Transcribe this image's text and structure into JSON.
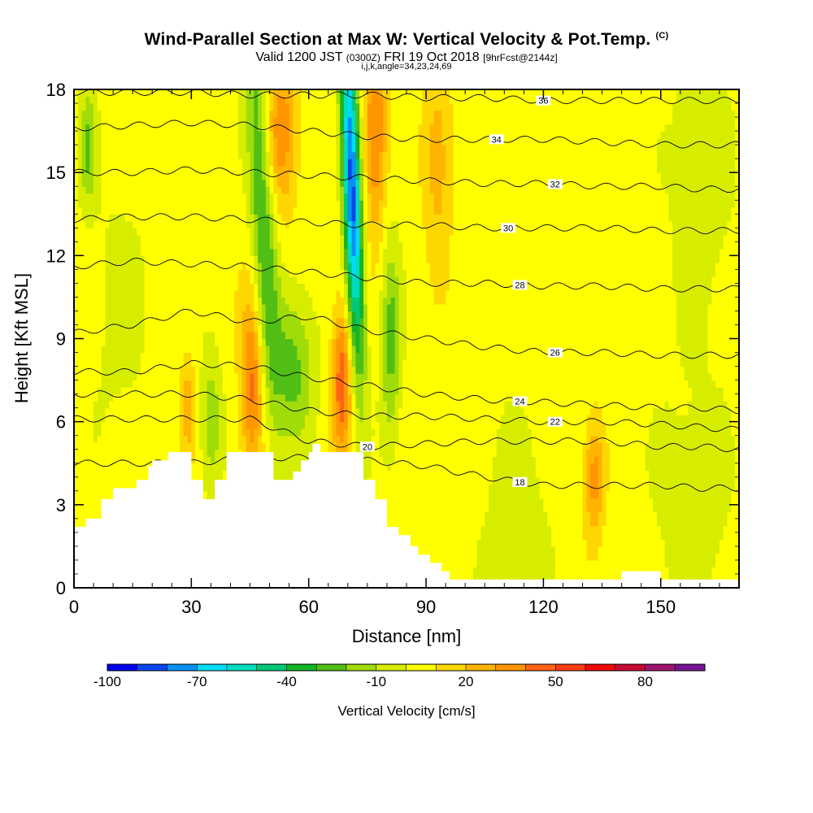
{
  "titles": {
    "main": "Wind-Parallel Section at Max W: Vertical Velocity & Pot.Temp.",
    "main_tag": "(C)",
    "valid_prefix": "Valid 1200 JST",
    "valid_utc": "(0300Z)",
    "valid_date": "FRI 19 Oct 2018",
    "valid_fcst": "[9hrFcst@2144z]",
    "indices": "i,j,k,angle=34,23,24,69"
  },
  "chart_data": {
    "type": "heatmap",
    "xlabel": "Distance [nm]",
    "ylabel": "Height [Kft MSL]",
    "xlim": [
      0,
      170
    ],
    "ylim": [
      0,
      18
    ],
    "x_ticks": [
      0,
      30,
      60,
      90,
      120,
      150
    ],
    "y_ticks": [
      0,
      3,
      6,
      9,
      12,
      15,
      18
    ],
    "colorbar": {
      "label": "Vertical Velocity [cm/s]",
      "range": [
        -100,
        100
      ],
      "tick_values": [
        -100,
        -70,
        -40,
        -10,
        20,
        50,
        80
      ],
      "colors": [
        "#0000f0",
        "#0a46f0",
        "#0a90f5",
        "#00dcf5",
        "#00dcbe",
        "#00c878",
        "#14b428",
        "#50be14",
        "#a0dc0a",
        "#d7ed00",
        "#ffff00",
        "#ffd700",
        "#ffb400",
        "#ff9600",
        "#ff6414",
        "#fa3c14",
        "#f00a0a",
        "#c80a32",
        "#a0146e",
        "#781496"
      ]
    },
    "w_field": {
      "units": "cm/s",
      "background": 5,
      "features": [
        {
          "x": 48,
          "y": 14.0,
          "sx": 2.2,
          "sy": 5.0,
          "w": -38,
          "tilt": -0.35
        },
        {
          "x": 45.5,
          "y": 7.5,
          "sx": 2.0,
          "sy": 2.5,
          "w": 38
        },
        {
          "x": 53,
          "y": 16.5,
          "sx": 3.0,
          "sy": 2.0,
          "w": 32
        },
        {
          "x": 56,
          "y": 8.0,
          "sx": 4.0,
          "sy": 2.0,
          "w": -28
        },
        {
          "x": 71,
          "y": 14.5,
          "sx": 1.6,
          "sy": 4.5,
          "w": -90,
          "tilt": -0.25
        },
        {
          "x": 68.5,
          "y": 7.5,
          "sx": 1.8,
          "sy": 2.0,
          "w": 42
        },
        {
          "x": 77,
          "y": 16.5,
          "sx": 2.0,
          "sy": 2.5,
          "w": 38
        },
        {
          "x": 81,
          "y": 9.0,
          "sx": 1.8,
          "sy": 2.5,
          "w": -30
        },
        {
          "x": 93,
          "y": 15.5,
          "sx": 2.5,
          "sy": 2.5,
          "w": 22
        },
        {
          "x": 3.5,
          "y": 16.0,
          "sx": 1.5,
          "sy": 1.5,
          "w": -25
        },
        {
          "x": 35,
          "y": 6.0,
          "sx": 2.0,
          "sy": 1.8,
          "w": -22
        },
        {
          "x": 29,
          "y": 6.5,
          "sx": 1.5,
          "sy": 1.2,
          "w": 22
        },
        {
          "x": 133,
          "y": 4.0,
          "sx": 1.8,
          "sy": 1.5,
          "w": 30
        },
        {
          "x": 113,
          "y": 2.0,
          "sx": 6.0,
          "sy": 3.0,
          "w": -12
        },
        {
          "x": 158,
          "y": 3.0,
          "sx": 7.0,
          "sy": 3.0,
          "w": -12
        },
        {
          "x": 12,
          "y": 10.0,
          "sx": 6.0,
          "sy": 4.0,
          "w": -8
        },
        {
          "x": 160,
          "y": 15.0,
          "sx": 6.0,
          "sy": 4.0,
          "w": -12
        }
      ]
    },
    "theta_contours": [
      {
        "level": 18,
        "y": [
          4.5,
          4.5,
          4.5,
          4.7,
          4.7,
          4.6,
          4.4,
          4.0,
          3.7,
          3.7,
          3.7,
          3.6,
          3.6
        ],
        "label_at": 114
      },
      {
        "level": 20,
        "y": [
          6.1,
          6.1,
          6.1,
          6.1,
          5.3,
          5.1,
          5.2,
          5.3,
          5.3,
          5.3,
          5.1,
          5.1,
          5.0
        ],
        "label_at": 75
      },
      {
        "level": 22,
        "y": [
          7.0,
          7.0,
          7.0,
          6.8,
          6.4,
          6.2,
          6.2,
          6.1,
          6.0,
          6.0,
          5.9,
          5.8,
          5.7
        ],
        "label_at": 123
      },
      {
        "level": 24,
        "y": [
          7.8,
          7.8,
          8.1,
          8.0,
          7.6,
          7.3,
          7.0,
          6.8,
          6.7,
          6.6,
          6.5,
          6.5,
          6.4
        ],
        "label_at": 114
      },
      {
        "level": 26,
        "y": [
          9.2,
          9.5,
          10.0,
          9.6,
          9.8,
          9.3,
          9.0,
          8.7,
          8.5,
          8.5,
          8.4,
          8.4,
          8.4
        ],
        "label_at": 123
      },
      {
        "level": 28,
        "y": [
          11.6,
          11.8,
          11.7,
          11.6,
          11.4,
          11.2,
          11.0,
          11.0,
          10.9,
          10.9,
          10.8,
          10.8,
          10.8
        ],
        "label_at": 114
      },
      {
        "level": 30,
        "y": [
          13.3,
          13.4,
          13.4,
          13.3,
          13.2,
          13.1,
          13.1,
          13.0,
          13.0,
          13.0,
          12.9,
          12.9,
          12.9
        ],
        "label_at": 111
      },
      {
        "level": 32,
        "y": [
          15.0,
          15.0,
          15.1,
          15.0,
          14.9,
          14.8,
          14.7,
          14.6,
          14.6,
          14.5,
          14.5,
          14.4,
          14.4
        ],
        "label_at": 123
      },
      {
        "level": 34,
        "y": [
          16.6,
          16.7,
          16.8,
          16.7,
          16.5,
          16.3,
          16.2,
          16.2,
          16.2,
          16.1,
          16.0,
          16.0,
          16.0
        ],
        "label_at": 108
      },
      {
        "level": 36,
        "y": [
          17.9,
          17.9,
          17.9,
          17.8,
          17.8,
          17.8,
          17.7,
          17.7,
          17.6,
          17.6,
          17.6,
          17.6,
          17.6
        ],
        "label_at": 120
      }
    ],
    "contour_x": [
      0,
      15,
      30,
      45,
      60,
      75,
      90,
      105,
      120,
      135,
      150,
      160,
      170
    ],
    "terrain": {
      "x": [
        0,
        3,
        3,
        7,
        7,
        10,
        10,
        16,
        16,
        19,
        19,
        20,
        20,
        24,
        24,
        30,
        30,
        33,
        33,
        36,
        36,
        39,
        39,
        51,
        51,
        56,
        56,
        58,
        58,
        60,
        60,
        61,
        61,
        63,
        63,
        74,
        74,
        77,
        77,
        80,
        80,
        83,
        83,
        86,
        86,
        88,
        88,
        91,
        91,
        94,
        94,
        96,
        96,
        98,
        98,
        140,
        140,
        150,
        150,
        154,
        154,
        170
      ],
      "y": [
        2.2,
        2.2,
        2.5,
        2.5,
        3.2,
        3.2,
        3.6,
        3.6,
        3.9,
        3.9,
        4.4,
        4.4,
        4.6,
        4.6,
        4.9,
        4.9,
        3.9,
        3.9,
        3.2,
        3.2,
        3.9,
        3.9,
        4.9,
        4.9,
        3.9,
        3.9,
        4.2,
        4.2,
        4.6,
        4.6,
        4.9,
        4.9,
        5.2,
        5.2,
        4.9,
        4.9,
        3.9,
        3.9,
        3.2,
        3.2,
        2.2,
        2.2,
        1.9,
        1.9,
        1.5,
        1.5,
        1.2,
        1.2,
        0.9,
        0.9,
        0.6,
        0.6,
        0.3,
        0.3,
        0.3,
        0.3,
        0.6,
        0.6,
        0.3,
        0.3,
        0.3,
        0.3
      ]
    }
  }
}
